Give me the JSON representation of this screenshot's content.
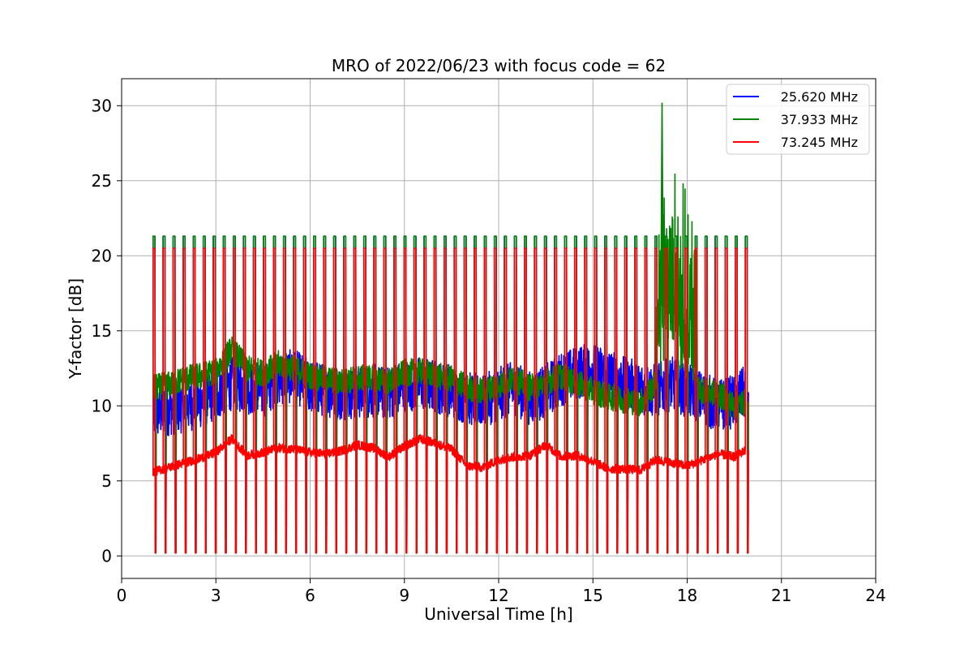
{
  "chart_data": {
    "type": "line",
    "title": "MRO of 2022/06/23 with focus code = 62",
    "xlabel": "Universal Time [h]",
    "ylabel": "Y-factor [dB]",
    "xlim": [
      0,
      24
    ],
    "ylim": [
      -1.5,
      31.8
    ],
    "xticks": [
      0,
      3,
      6,
      9,
      12,
      15,
      18,
      21,
      24
    ],
    "yticks": [
      0,
      5,
      10,
      15,
      20,
      25,
      30
    ],
    "grid": true,
    "legend_position": "top-right",
    "calibration_pulses": {
      "start_h": 1.0,
      "end_h": 19.85,
      "count": 60,
      "note_peaks_dB": {
        "25.620 MHz": 21.3,
        "37.933 MHz": 21.3,
        "73.245 MHz": 20.5
      }
    },
    "series": [
      {
        "name": "25.620 MHz",
        "color": "#0000ff",
        "x": [
          1.0,
          1.5,
          2.0,
          2.5,
          3.0,
          3.5,
          4.0,
          4.5,
          5.0,
          5.5,
          6.0,
          6.5,
          7.0,
          7.5,
          8.0,
          8.5,
          9.0,
          9.5,
          10.0,
          10.5,
          11.0,
          11.5,
          12.0,
          12.5,
          13.0,
          13.5,
          14.0,
          14.5,
          15.0,
          15.5,
          16.0,
          16.5,
          17.0,
          17.5,
          18.0,
          18.5,
          19.0,
          19.5,
          19.9
        ],
        "y": [
          9.5,
          9.8,
          10.0,
          10.3,
          10.8,
          11.5,
          11.2,
          11.0,
          11.8,
          12.0,
          11.3,
          11.0,
          10.8,
          10.9,
          11.0,
          10.8,
          11.4,
          11.5,
          11.3,
          11.0,
          10.5,
          10.3,
          10.8,
          11.2,
          10.5,
          11.0,
          11.8,
          12.2,
          12.5,
          12.0,
          11.5,
          11.2,
          11.0,
          11.5,
          11.0,
          10.5,
          10.0,
          10.3,
          11.0
        ],
        "spread": 1.8
      },
      {
        "name": "37.933 MHz",
        "color": "#008000",
        "x": [
          1.0,
          1.5,
          2.0,
          2.5,
          3.0,
          3.5,
          4.0,
          4.5,
          5.0,
          5.5,
          6.0,
          6.5,
          7.0,
          7.5,
          8.0,
          8.5,
          9.0,
          9.5,
          10.0,
          10.5,
          11.0,
          11.5,
          12.0,
          12.5,
          13.0,
          13.5,
          14.0,
          14.5,
          15.0,
          15.5,
          16.0,
          16.5,
          17.0,
          17.2,
          17.4,
          17.6,
          17.8,
          18.0,
          18.5,
          19.0,
          19.5,
          19.9
        ],
        "y": [
          11.2,
          11.4,
          11.8,
          12.0,
          12.3,
          13.8,
          12.5,
          12.2,
          12.8,
          12.5,
          12.0,
          11.8,
          11.6,
          11.8,
          11.9,
          11.6,
          12.2,
          12.3,
          12.0,
          11.8,
          11.2,
          11.0,
          11.4,
          11.8,
          11.2,
          11.6,
          12.0,
          11.5,
          11.0,
          10.6,
          10.4,
          10.2,
          11.5,
          16.0,
          14.0,
          15.5,
          13.0,
          12.0,
          11.0,
          10.8,
          10.0,
          10.3
        ],
        "spread": 0.9
      },
      {
        "name": "73.245 MHz",
        "color": "#ff0000",
        "x": [
          1.0,
          1.5,
          2.0,
          2.5,
          3.0,
          3.5,
          4.0,
          4.5,
          5.0,
          5.5,
          6.0,
          6.5,
          7.0,
          7.5,
          8.0,
          8.5,
          9.0,
          9.5,
          10.0,
          10.5,
          11.0,
          11.5,
          12.0,
          12.5,
          13.0,
          13.5,
          14.0,
          14.5,
          15.0,
          15.5,
          16.0,
          16.5,
          17.0,
          17.5,
          18.0,
          18.5,
          19.0,
          19.5,
          19.9
        ],
        "y": [
          5.6,
          5.9,
          6.2,
          6.5,
          6.9,
          7.8,
          6.7,
          6.9,
          7.2,
          7.1,
          6.9,
          6.8,
          7.0,
          7.4,
          7.2,
          6.6,
          7.3,
          7.8,
          7.5,
          7.1,
          6.0,
          5.9,
          6.4,
          6.6,
          6.7,
          7.4,
          6.6,
          6.7,
          6.3,
          5.8,
          5.8,
          5.7,
          6.4,
          6.2,
          6.0,
          6.4,
          6.8,
          6.6,
          7.1
        ],
        "spread": 0.3
      }
    ]
  }
}
